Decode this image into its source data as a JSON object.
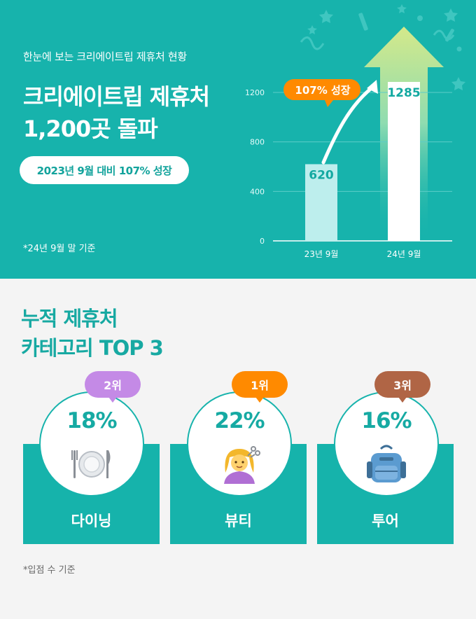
{
  "header": {
    "subtitle": "한눈에 보는 크리에이트립 제휴처 현황",
    "headline_line1": "크리에이트립 제휴처",
    "headline_line2": "1,200곳 돌파",
    "pill_text": "2023년 9월 대비 107% 성장",
    "footnote": "*24년 9월 말 기준"
  },
  "chart_data": {
    "type": "bar",
    "categories": [
      "23년 9월",
      "24년 9월"
    ],
    "values": [
      620,
      1285
    ],
    "value_labels": [
      "620",
      "1285"
    ],
    "ylim": [
      0,
      1200
    ],
    "yticks": [
      0,
      400,
      800,
      1200
    ],
    "ytick_labels": [
      "0",
      "400",
      "800",
      "1200"
    ],
    "grid": true,
    "annotation": "107% 성장",
    "colors": {
      "bar1": "#bdeeed",
      "bar2": "#ffffff",
      "annotation_bg": "#ff8a00",
      "arrow_tip": "#cfe67a"
    }
  },
  "categories_section": {
    "title_line1": "누적 제휴처",
    "title_line2": "카테고리 TOP 3",
    "items": [
      {
        "rank": "2위",
        "percent": "18%",
        "percent_value": 18,
        "label": "다이닝",
        "icon": "plate-cutlery-icon",
        "badge_color": "#c48ae6"
      },
      {
        "rank": "1위",
        "percent": "22%",
        "percent_value": 22,
        "label": "뷰티",
        "icon": "haircut-woman-icon",
        "badge_color": "#ff8a00"
      },
      {
        "rank": "3위",
        "percent": "16%",
        "percent_value": 16,
        "label": "투어",
        "icon": "backpack-icon",
        "badge_color": "#b06545"
      }
    ],
    "footnote": "*입점 수 기준"
  }
}
